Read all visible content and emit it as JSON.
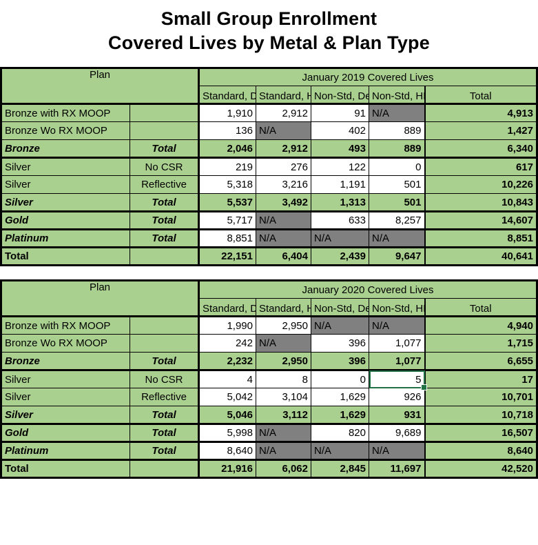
{
  "title": {
    "line1": "Small Group Enrollment",
    "line2": "Covered Lives by Metal & Plan Type"
  },
  "colors": {
    "cell_green": "#A9D08E",
    "na_gray": "#808080",
    "grid_black": "#000000",
    "selection_green": "#217346",
    "cell_white": "#FFFFFF"
  },
  "tables": [
    {
      "name": "january-2019",
      "plan_header": "Plan",
      "period_header": "January 2019 Covered Lives",
      "sub_headers": [
        "Standard, Deductible",
        "Standard, HDHP",
        "Non-Std, Deductible",
        "Non-Std, HDHP",
        "Total"
      ],
      "rows": [
        {
          "type": "detail",
          "label": "Bronze with RX MOOP",
          "sub": "",
          "cells": [
            {
              "t": "1,910",
              "bg": "white"
            },
            {
              "t": "2,912",
              "bg": "white"
            },
            {
              "t": "91",
              "bg": "white"
            },
            {
              "t": "N/A",
              "bg": "gray"
            },
            {
              "t": "4,913",
              "bg": "green",
              "bold": true
            }
          ]
        },
        {
          "type": "detail",
          "label": "Bronze Wo RX MOOP",
          "sub": "",
          "cells": [
            {
              "t": "136",
              "bg": "white"
            },
            {
              "t": "N/A",
              "bg": "gray"
            },
            {
              "t": "402",
              "bg": "white"
            },
            {
              "t": "889",
              "bg": "white"
            },
            {
              "t": "1,427",
              "bg": "green",
              "bold": true
            }
          ]
        },
        {
          "type": "metal-total",
          "label": "Bronze",
          "sub": "Total",
          "thick_bottom": true,
          "cells": [
            {
              "t": "2,046",
              "bg": "green",
              "bold": true
            },
            {
              "t": "2,912",
              "bg": "green",
              "bold": true
            },
            {
              "t": "493",
              "bg": "green",
              "bold": true
            },
            {
              "t": "889",
              "bg": "green",
              "bold": true
            },
            {
              "t": "6,340",
              "bg": "green",
              "bold": true
            }
          ]
        },
        {
          "type": "detail",
          "label": "Silver",
          "sub": "No CSR",
          "cells": [
            {
              "t": "219",
              "bg": "white"
            },
            {
              "t": "276",
              "bg": "white"
            },
            {
              "t": "122",
              "bg": "white"
            },
            {
              "t": "0",
              "bg": "white"
            },
            {
              "t": "617",
              "bg": "green",
              "bold": true
            }
          ]
        },
        {
          "type": "detail",
          "label": "Silver",
          "sub": "Reflective",
          "cells": [
            {
              "t": "5,318",
              "bg": "white"
            },
            {
              "t": "3,216",
              "bg": "white"
            },
            {
              "t": "1,191",
              "bg": "white"
            },
            {
              "t": "501",
              "bg": "white"
            },
            {
              "t": "10,226",
              "bg": "green",
              "bold": true
            }
          ]
        },
        {
          "type": "metal-total",
          "label": "Silver",
          "sub": "Total",
          "thick_bottom": true,
          "cells": [
            {
              "t": "5,537",
              "bg": "green",
              "bold": true
            },
            {
              "t": "3,492",
              "bg": "green",
              "bold": true
            },
            {
              "t": "1,313",
              "bg": "green",
              "bold": true
            },
            {
              "t": "501",
              "bg": "green",
              "bold": true
            },
            {
              "t": "10,843",
              "bg": "green",
              "bold": true
            }
          ]
        },
        {
          "type": "metal-total",
          "label": "Gold",
          "sub": "Total",
          "thick_bottom": true,
          "cells": [
            {
              "t": "5,717",
              "bg": "white"
            },
            {
              "t": "N/A",
              "bg": "gray"
            },
            {
              "t": "633",
              "bg": "white"
            },
            {
              "t": "8,257",
              "bg": "white"
            },
            {
              "t": "14,607",
              "bg": "green",
              "bold": true
            }
          ]
        },
        {
          "type": "metal-total",
          "label": "Platinum",
          "sub": "Total",
          "thick_bottom": true,
          "cells": [
            {
              "t": "8,851",
              "bg": "white"
            },
            {
              "t": "N/A",
              "bg": "gray"
            },
            {
              "t": "N/A",
              "bg": "gray"
            },
            {
              "t": "N/A",
              "bg": "gray"
            },
            {
              "t": "8,851",
              "bg": "green",
              "bold": true
            }
          ]
        },
        {
          "type": "grand-total",
          "label": "Total",
          "sub": "",
          "cells": [
            {
              "t": "22,151",
              "bg": "green",
              "bold": true
            },
            {
              "t": "6,404",
              "bg": "green",
              "bold": true
            },
            {
              "t": "2,439",
              "bg": "green",
              "bold": true
            },
            {
              "t": "9,647",
              "bg": "green",
              "bold": true
            },
            {
              "t": "40,641",
              "bg": "green",
              "bold": true
            }
          ]
        }
      ]
    },
    {
      "name": "january-2020",
      "plan_header": "Plan",
      "period_header": "January 2020 Covered Lives",
      "sub_headers": [
        "Standard, Deductible",
        "Standard, HDHP",
        "Non-Std, Deductible",
        "Non-Std, HDHP",
        "Total"
      ],
      "rows": [
        {
          "type": "detail",
          "label": "Bronze with RX MOOP",
          "sub": "",
          "cells": [
            {
              "t": "1,990",
              "bg": "white"
            },
            {
              "t": "2,950",
              "bg": "white"
            },
            {
              "t": "N/A",
              "bg": "gray"
            },
            {
              "t": "N/A",
              "bg": "gray"
            },
            {
              "t": "4,940",
              "bg": "green",
              "bold": true
            }
          ]
        },
        {
          "type": "detail",
          "label": "Bronze Wo RX MOOP",
          "sub": "",
          "cells": [
            {
              "t": "242",
              "bg": "white"
            },
            {
              "t": "N/A",
              "bg": "gray"
            },
            {
              "t": "396",
              "bg": "white"
            },
            {
              "t": "1,077",
              "bg": "white"
            },
            {
              "t": "1,715",
              "bg": "green",
              "bold": true
            }
          ]
        },
        {
          "type": "metal-total",
          "label": "Bronze",
          "sub": "Total",
          "thick_bottom": true,
          "cells": [
            {
              "t": "2,232",
              "bg": "green",
              "bold": true
            },
            {
              "t": "2,950",
              "bg": "green",
              "bold": true
            },
            {
              "t": "396",
              "bg": "green",
              "bold": true
            },
            {
              "t": "1,077",
              "bg": "green",
              "bold": true
            },
            {
              "t": "6,655",
              "bg": "green",
              "bold": true
            }
          ]
        },
        {
          "type": "detail",
          "label": "Silver",
          "sub": "No CSR",
          "cells": [
            {
              "t": "4",
              "bg": "white"
            },
            {
              "t": "8",
              "bg": "white"
            },
            {
              "t": "0",
              "bg": "white"
            },
            {
              "t": "5",
              "bg": "white",
              "selected": true
            },
            {
              "t": "17",
              "bg": "green",
              "bold": true
            }
          ]
        },
        {
          "type": "detail",
          "label": "Silver",
          "sub": "Reflective",
          "cells": [
            {
              "t": "5,042",
              "bg": "white"
            },
            {
              "t": "3,104",
              "bg": "white"
            },
            {
              "t": "1,629",
              "bg": "white"
            },
            {
              "t": "926",
              "bg": "white"
            },
            {
              "t": "10,701",
              "bg": "green",
              "bold": true
            }
          ]
        },
        {
          "type": "metal-total",
          "label": "Silver",
          "sub": "Total",
          "thick_bottom": true,
          "cells": [
            {
              "t": "5,046",
              "bg": "green",
              "bold": true
            },
            {
              "t": "3,112",
              "bg": "green",
              "bold": true
            },
            {
              "t": "1,629",
              "bg": "green",
              "bold": true
            },
            {
              "t": "931",
              "bg": "green",
              "bold": true
            },
            {
              "t": "10,718",
              "bg": "green",
              "bold": true
            }
          ]
        },
        {
          "type": "metal-total",
          "label": "Gold",
          "sub": "Total",
          "thick_bottom": true,
          "cells": [
            {
              "t": "5,998",
              "bg": "white"
            },
            {
              "t": "N/A",
              "bg": "gray"
            },
            {
              "t": "820",
              "bg": "white"
            },
            {
              "t": "9,689",
              "bg": "white"
            },
            {
              "t": "16,507",
              "bg": "green",
              "bold": true
            }
          ]
        },
        {
          "type": "metal-total",
          "label": "Platinum",
          "sub": "Total",
          "thick_bottom": true,
          "cells": [
            {
              "t": "8,640",
              "bg": "white"
            },
            {
              "t": "N/A",
              "bg": "gray"
            },
            {
              "t": "N/A",
              "bg": "gray"
            },
            {
              "t": "N/A",
              "bg": "gray"
            },
            {
              "t": "8,640",
              "bg": "green",
              "bold": true
            }
          ]
        },
        {
          "type": "grand-total",
          "label": "Total",
          "sub": "",
          "cells": [
            {
              "t": "21,916",
              "bg": "green",
              "bold": true
            },
            {
              "t": "6,062",
              "bg": "green",
              "bold": true
            },
            {
              "t": "2,845",
              "bg": "green",
              "bold": true
            },
            {
              "t": "11,697",
              "bg": "green",
              "bold": true
            },
            {
              "t": "42,520",
              "bg": "green",
              "bold": true
            }
          ]
        }
      ]
    }
  ]
}
